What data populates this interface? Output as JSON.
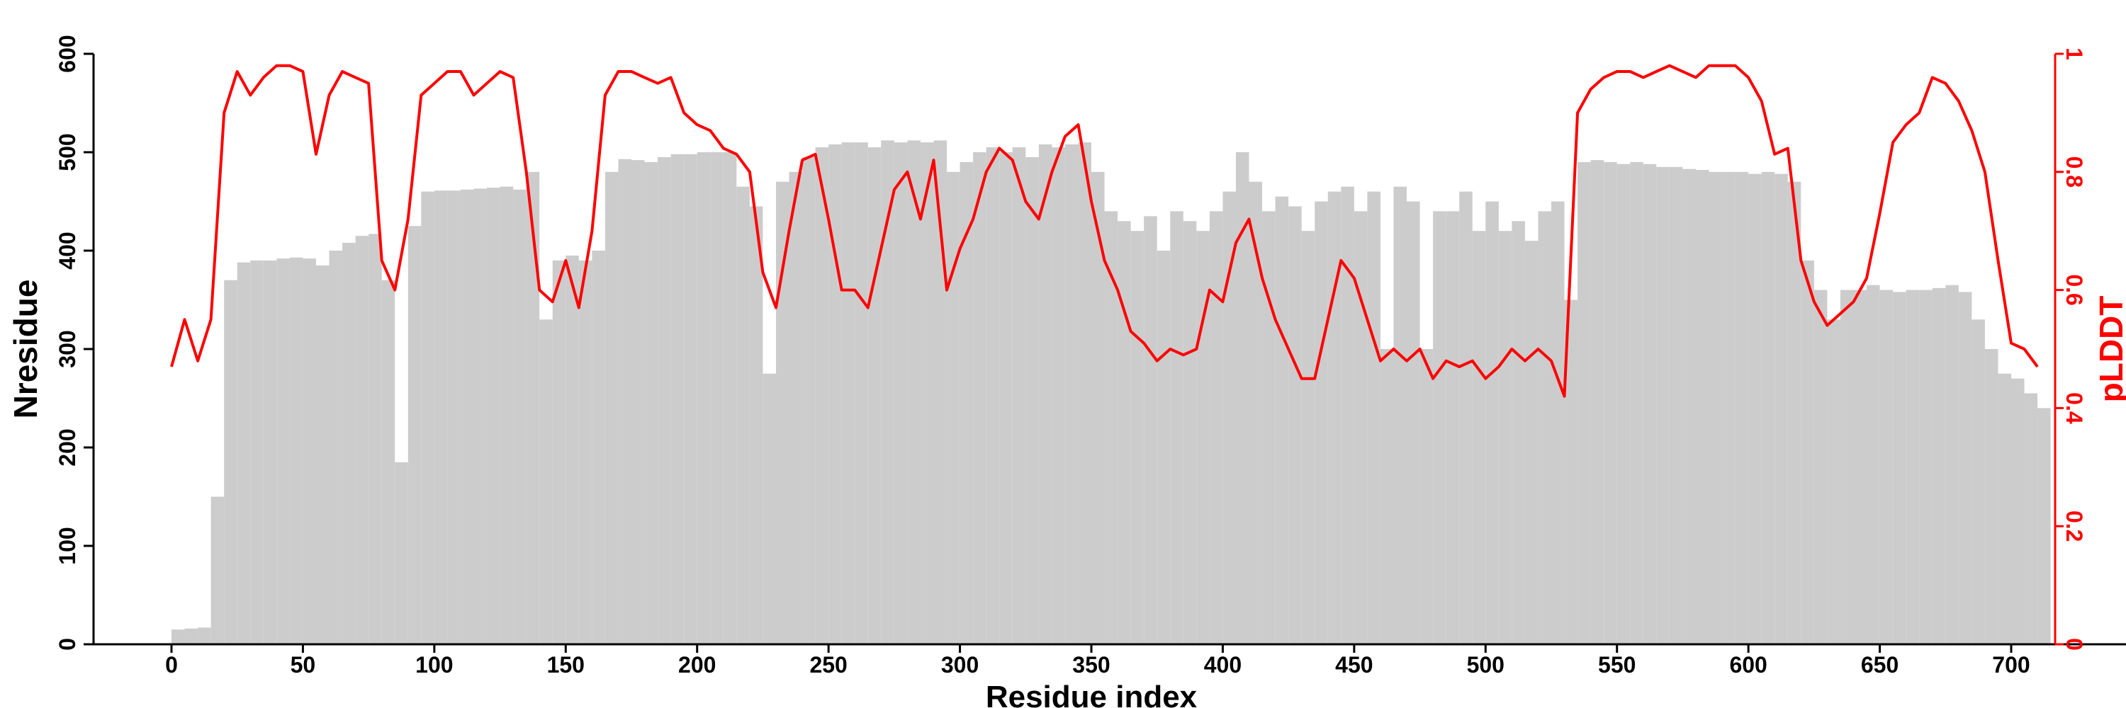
{
  "chart_data": {
    "type": "bar+line",
    "title": "",
    "xlabel": "Residue index",
    "ylabel": "Nresidue",
    "y2label": "pLDDT",
    "xlim": [
      0,
      714
    ],
    "ylim": [
      0,
      600
    ],
    "y2lim": [
      0,
      1
    ],
    "xticks": [
      "0",
      "50",
      "100",
      "150",
      "200",
      "250",
      "300",
      "350",
      "400",
      "450",
      "500",
      "550",
      "600",
      "650",
      "700"
    ],
    "yticks": [
      "0",
      "100",
      "200",
      "300",
      "400",
      "500",
      "600"
    ],
    "y2ticks": [
      "0",
      "0.2",
      "0.4",
      "0.6",
      "0.8",
      "1"
    ],
    "colors": {
      "bars": "#cccccc",
      "line": "#ff0000"
    },
    "series": [
      {
        "name": "Nresidue",
        "type": "bar",
        "step": 5,
        "x_start": 0,
        "values": [
          15,
          16,
          17,
          150,
          370,
          388,
          390,
          390,
          392,
          393,
          392,
          385,
          400,
          408,
          415,
          417,
          370,
          185,
          425,
          460,
          461,
          461,
          462,
          463,
          464,
          465,
          462,
          480,
          330,
          390,
          395,
          390,
          400,
          480,
          493,
          492,
          490,
          495,
          498,
          498,
          500,
          500,
          500,
          465,
          445,
          275,
          470,
          480,
          495,
          505,
          508,
          510,
          510,
          505,
          512,
          510,
          512,
          510,
          512,
          480,
          490,
          500,
          505,
          500,
          505,
          495,
          508,
          505,
          508,
          510,
          480,
          440,
          430,
          420,
          435,
          400,
          440,
          430,
          420,
          440,
          460,
          500,
          470,
          440,
          455,
          445,
          420,
          450,
          460,
          465,
          440,
          460,
          300,
          465,
          450,
          300,
          440,
          440,
          460,
          420,
          450,
          420,
          430,
          410,
          440,
          450,
          350,
          490,
          492,
          490,
          488,
          490,
          488,
          485,
          485,
          483,
          482,
          480,
          480,
          480,
          478,
          480,
          478,
          470,
          390,
          360,
          330,
          360,
          360,
          365,
          360,
          358,
          360,
          360,
          362,
          365,
          358,
          330,
          300,
          275,
          270,
          255,
          240
        ]
      },
      {
        "name": "pLDDT",
        "type": "line",
        "step": 5,
        "x_start": 0,
        "values": [
          0.47,
          0.55,
          0.48,
          0.55,
          0.9,
          0.97,
          0.93,
          0.96,
          0.98,
          0.98,
          0.97,
          0.83,
          0.93,
          0.97,
          0.96,
          0.95,
          0.65,
          0.6,
          0.72,
          0.93,
          0.95,
          0.97,
          0.97,
          0.93,
          0.95,
          0.97,
          0.96,
          0.8,
          0.6,
          0.58,
          0.65,
          0.57,
          0.7,
          0.93,
          0.97,
          0.97,
          0.96,
          0.95,
          0.96,
          0.9,
          0.88,
          0.87,
          0.84,
          0.83,
          0.8,
          0.63,
          0.57,
          0.7,
          0.82,
          0.83,
          0.72,
          0.6,
          0.6,
          0.57,
          0.67,
          0.77,
          0.8,
          0.72,
          0.82,
          0.6,
          0.67,
          0.72,
          0.8,
          0.84,
          0.82,
          0.75,
          0.72,
          0.8,
          0.86,
          0.88,
          0.75,
          0.65,
          0.6,
          0.53,
          0.51,
          0.48,
          0.5,
          0.49,
          0.5,
          0.6,
          0.58,
          0.68,
          0.72,
          0.62,
          0.55,
          0.5,
          0.45,
          0.45,
          0.55,
          0.65,
          0.62,
          0.55,
          0.48,
          0.5,
          0.48,
          0.5,
          0.45,
          0.48,
          0.47,
          0.48,
          0.45,
          0.47,
          0.5,
          0.48,
          0.5,
          0.48,
          0.42,
          0.9,
          0.94,
          0.96,
          0.97,
          0.97,
          0.96,
          0.97,
          0.98,
          0.97,
          0.96,
          0.98,
          0.98,
          0.98,
          0.96,
          0.92,
          0.83,
          0.84,
          0.65,
          0.58,
          0.54,
          0.56,
          0.58,
          0.62,
          0.73,
          0.85,
          0.88,
          0.9,
          0.96,
          0.95,
          0.92,
          0.87,
          0.8,
          0.65,
          0.51,
          0.5,
          0.47
        ]
      }
    ]
  }
}
